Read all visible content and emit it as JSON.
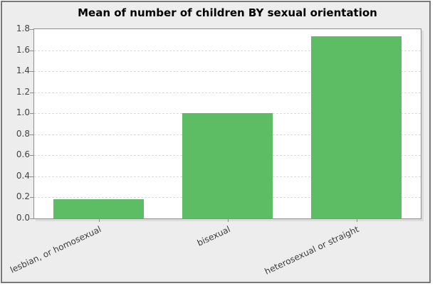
{
  "chart_data": {
    "type": "bar",
    "title": "Mean of number of children BY sexual orientation",
    "categories": [
      "lesbian, or homosexual",
      "bisexual",
      "heterosexual or straight"
    ],
    "values": [
      0.18,
      1.0,
      1.73
    ],
    "xlabel": "",
    "ylabel": "",
    "ylim": [
      0,
      1.8
    ],
    "ytick_step": 0.2,
    "ytick_labels": [
      "0.0",
      "0.2",
      "0.4",
      "0.6",
      "0.8",
      "1.0",
      "1.2",
      "1.4",
      "1.6",
      "1.8"
    ],
    "bar_width_fraction": 0.7,
    "grid": true,
    "gridline_style": "dashed",
    "legend": "none",
    "colors": {
      "bar": "#5cbd64",
      "figure_background": "#ededed",
      "plot_background": "#ffffff",
      "frame_border": "#797979",
      "axis_border": "#8f8f8f",
      "gridline": "#dcdcdc",
      "tick_text": "#444444",
      "title_text": "#000000"
    }
  }
}
